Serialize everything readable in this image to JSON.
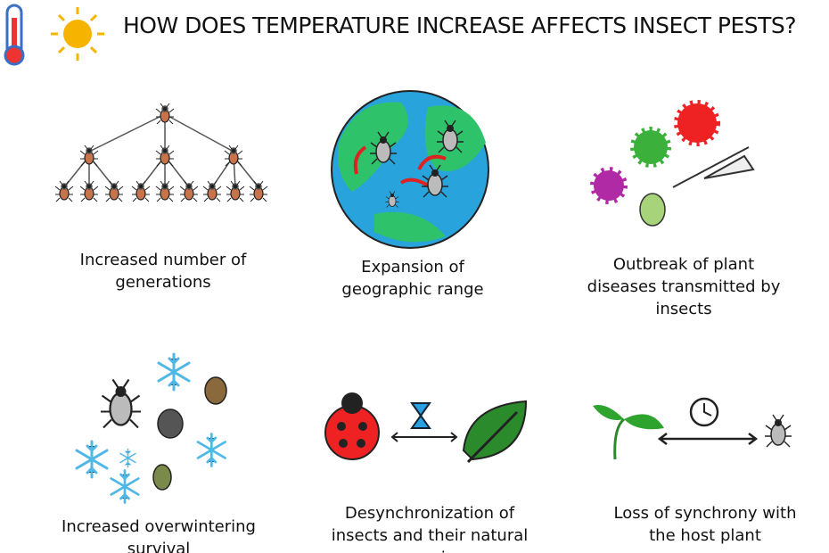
{
  "header": {
    "title": "HOW DOES TEMPERATURE INCREASE AFFECTS INSECT PESTS?"
  },
  "panels": [
    {
      "caption": "Increased number of generations"
    },
    {
      "caption": "Expansion of geographic range"
    },
    {
      "caption": "Outbreak of plant diseases transmitted by insects"
    },
    {
      "caption": "Increased overwintering survival"
    },
    {
      "caption": "Desynchronization of insects and their natural enemies"
    },
    {
      "caption": "Loss of synchrony with the host plant"
    }
  ]
}
